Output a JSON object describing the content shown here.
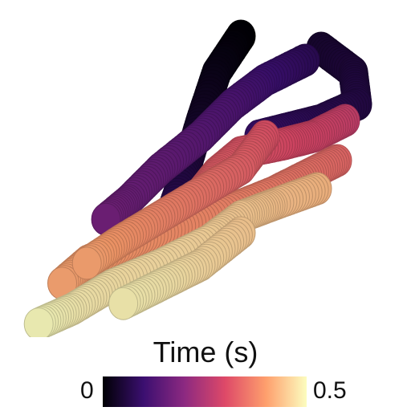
{
  "colorbar": {
    "title": "Time (s)",
    "min_label": "0",
    "max_label": "0.5",
    "range": [
      0,
      0.5
    ],
    "colormap": "magma",
    "stops": [
      "#000004",
      "#3b0f70",
      "#8c2981",
      "#de4968",
      "#fe9f6d",
      "#fcfdbf"
    ]
  },
  "scene": {
    "description_type": "3D tube trajectory colored by time",
    "background": "#ffffff"
  }
}
